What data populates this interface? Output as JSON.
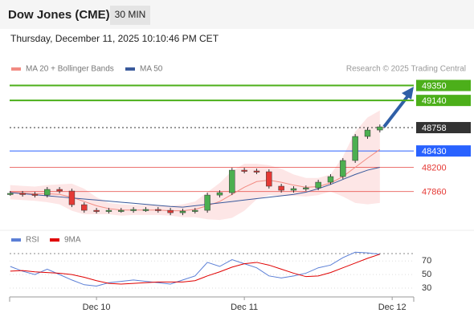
{
  "header": {
    "title": "Dow Jones (CME)",
    "interval": "30 MIN",
    "timestamp": "Thursday, December 11, 2025 10:10:46 PM CET",
    "credit": "Research © 2025 Trading Central"
  },
  "chart_data": [
    {
      "type": "candlestick",
      "x": [
        -14,
        -12,
        -10,
        -8,
        -6,
        -4,
        -2,
        0,
        2,
        4,
        6,
        8,
        10,
        12,
        14,
        16,
        18,
        20,
        22,
        24,
        26,
        28,
        30,
        32,
        34,
        36,
        38,
        40,
        42,
        44,
        46
      ],
      "xlim": [
        -14.1,
        51.5
      ],
      "xticks": [
        {
          "value": 0,
          "label": "Dec 10"
        },
        {
          "value": 24,
          "label": "Dec 11"
        },
        {
          "value": 48,
          "label": "Dec 12"
        }
      ],
      "ylim": [
        47360,
        49480
      ],
      "close": [
        47834,
        47822,
        47810,
        47890,
        47867,
        47675,
        47596,
        47585,
        47596,
        47596,
        47608,
        47608,
        47596,
        47562,
        47585,
        47596,
        47810,
        47844,
        48160,
        48149,
        48138,
        47935,
        47878,
        47901,
        47912,
        47991,
        48070,
        48296,
        48634,
        48724,
        48769
      ],
      "up_color": "#4caf50",
      "down_color": "#e53935",
      "series": [
        {
          "name": "MA 20 + Bollinger Bands",
          "color": "#f28b82",
          "values": [
            47850,
            47840,
            47830,
            47830,
            47820,
            47780,
            47720,
            47660,
            47620,
            47600,
            47600,
            47600,
            47600,
            47590,
            47590,
            47610,
            47660,
            47720,
            47820,
            47920,
            48000,
            48020,
            47990,
            47950,
            47920,
            47930,
            47980,
            48070,
            48200,
            48330,
            48450
          ],
          "upper": [
            47950,
            47940,
            47930,
            47950,
            47960,
            47970,
            47900,
            47780,
            47700,
            47680,
            47670,
            47670,
            47670,
            47660,
            47680,
            47720,
            47850,
            47980,
            48150,
            48250,
            48250,
            48230,
            48180,
            48100,
            48050,
            48050,
            48100,
            48350,
            48700,
            48900,
            49000
          ],
          "lower": [
            47750,
            47740,
            47730,
            47710,
            47680,
            47590,
            47540,
            47540,
            47540,
            47520,
            47530,
            47530,
            47530,
            47520,
            47500,
            47500,
            47470,
            47460,
            47490,
            47590,
            47750,
            47810,
            47800,
            47800,
            47790,
            47810,
            47860,
            47790,
            47700,
            47680,
            47700
          ]
        },
        {
          "name": "MA 50",
          "color": "#3a5a9c",
          "values": [
            47845,
            47830,
            47815,
            47800,
            47785,
            47770,
            47755,
            47740,
            47725,
            47710,
            47695,
            47680,
            47665,
            47650,
            47640,
            47660,
            47680,
            47700,
            47720,
            47740,
            47760,
            47780,
            47800,
            47820,
            47850,
            47900,
            47960,
            48030,
            48100,
            48160,
            48200
          ]
        }
      ],
      "levels": [
        {
          "value": 49350,
          "color": "#4caf1a"
        },
        {
          "value": 49140,
          "color": "#4caf1a"
        },
        {
          "value": 48758,
          "color": "#333333"
        },
        {
          "value": 48430,
          "color": "#2962ff"
        },
        {
          "value": 48200,
          "color": "#e53935"
        },
        {
          "value": 47860,
          "color": "#e53935"
        }
      ]
    },
    {
      "type": "line",
      "x": [
        -14,
        -12,
        -10,
        -8,
        -6,
        -4,
        -2,
        0,
        2,
        4,
        6,
        8,
        10,
        12,
        14,
        16,
        18,
        20,
        22,
        24,
        26,
        28,
        30,
        32,
        34,
        36,
        38,
        40,
        42,
        44,
        46
      ],
      "xlim": [
        -14.1,
        51.5
      ],
      "ylim": [
        17,
        94
      ],
      "yticks": [
        70,
        50,
        30
      ],
      "series": [
        {
          "name": "RSI",
          "color": "#5b7fd6",
          "values": [
            62,
            55,
            50,
            58,
            50,
            42,
            35,
            33,
            38,
            40,
            42,
            40,
            38,
            36,
            42,
            48,
            68,
            62,
            72,
            66,
            60,
            48,
            45,
            48,
            52,
            60,
            64,
            75,
            83,
            82,
            80
          ]
        },
        {
          "name": "9MA",
          "color": "#e00000",
          "values": [
            55,
            56,
            54,
            53,
            52,
            50,
            46,
            41,
            37,
            36,
            37,
            38,
            39,
            39,
            39,
            41,
            48,
            54,
            61,
            66,
            68,
            64,
            58,
            52,
            47,
            48,
            53,
            60,
            67,
            74,
            80
          ]
        }
      ]
    }
  ]
}
